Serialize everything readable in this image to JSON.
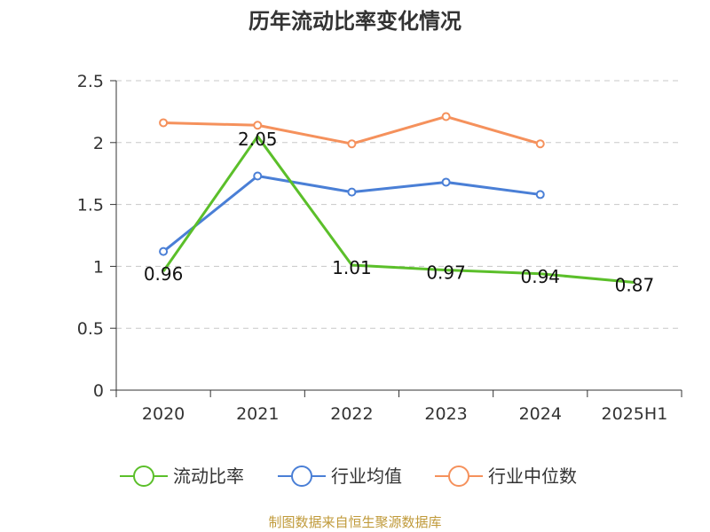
{
  "chart_data": {
    "type": "line",
    "title": "历年流动比率变化情况",
    "categories": [
      "2020",
      "2021",
      "2022",
      "2023",
      "2024",
      "2025H1"
    ],
    "ylim": [
      0,
      2.5
    ],
    "yticks": [
      "0",
      "0.5",
      "1",
      "1.5",
      "2",
      "2.5"
    ],
    "grid": true,
    "legend_position": "bottom",
    "series": [
      {
        "name": "流动比率",
        "color": "#5bbf2a",
        "values": [
          0.96,
          2.05,
          1.01,
          0.97,
          0.94,
          0.87
        ],
        "labels": [
          "0.96",
          "2.05",
          "1.01",
          "0.97",
          "0.94",
          "0.87"
        ]
      },
      {
        "name": "行业均值",
        "color": "#4a7fd6",
        "values": [
          1.12,
          1.73,
          1.6,
          1.68,
          1.58,
          null
        ]
      },
      {
        "name": "行业中位数",
        "color": "#f5915c",
        "values": [
          2.16,
          2.14,
          1.99,
          2.21,
          1.99,
          null
        ]
      }
    ],
    "source": "制图数据来自恒生聚源数据库"
  }
}
